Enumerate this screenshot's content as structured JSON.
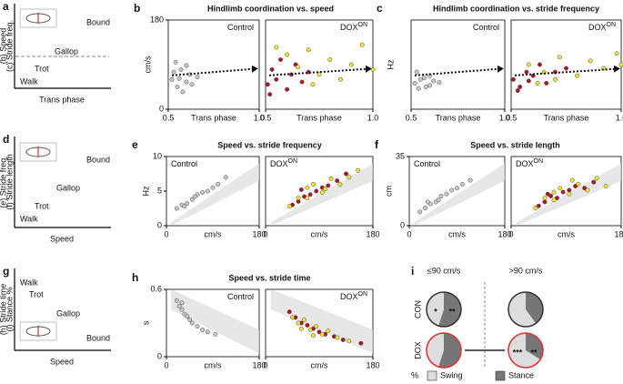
{
  "schematics": [
    {
      "letter": "a",
      "ylabels": [
        "(b) Speed",
        "(c) Stride freq."
      ],
      "xlabel": "Trans phase",
      "gaits": [
        "Bound",
        "Gallop",
        "Trot",
        "Walk"
      ]
    },
    {
      "letter": "d",
      "ylabels": [
        "(e) Stride freq.",
        "(f) Stride length"
      ],
      "xlabel": "Speed",
      "gaits": [
        "Bound",
        "Gallop",
        "Trot",
        "Walk"
      ]
    },
    {
      "letter": "g",
      "ylabels": [
        "(h) Stride time",
        "(i) Stance %"
      ],
      "xlabel": "Speed",
      "gaits": [
        "Walk",
        "Trot",
        "Gallop",
        "Bound"
      ]
    }
  ],
  "chart_data": [
    {
      "type": "scatter",
      "letter": "b",
      "title": "Hindlimb coordination vs. speed",
      "label": "Control",
      "ylabel": "cm/s",
      "xlabel": "Trans phase",
      "xlim": [
        0.5,
        1.0
      ],
      "ylim": [
        0,
        180
      ],
      "xticks": [
        0.5,
        {
          "value": 1,
          "label": "1.0"
        }
      ],
      "yticks": [
        0,
        180
      ],
      "series": [
        {
          "color": "#c8c8c8",
          "x": [
            0.52,
            0.55,
            0.57,
            0.6,
            0.62,
            0.54,
            0.58,
            0.63,
            0.66,
            0.53,
            0.6,
            0.56
          ],
          "values": [
            60,
            45,
            80,
            55,
            70,
            95,
            35,
            50,
            65,
            75,
            88,
            62
          ]
        }
      ]
    },
    {
      "type": "scatter",
      "label": "DOX",
      "label_sup": "ON",
      "xlabel": "Trans phase",
      "xlim": [
        0.5,
        1.0
      ],
      "ylim": [
        0,
        180
      ],
      "xticks": [
        0.5,
        {
          "value": 1,
          "label": "1.0"
        }
      ],
      "series": [
        {
          "color": "#b5122a",
          "x": [
            0.51,
            0.53,
            0.55,
            0.57,
            0.6,
            0.62,
            0.64,
            0.67,
            0.52,
            0.7
          ],
          "values": [
            50,
            80,
            60,
            100,
            40,
            70,
            90,
            55,
            30,
            75
          ]
        },
        {
          "color": "#f0e830",
          "x": [
            0.6,
            0.65,
            0.7,
            0.75,
            0.8,
            0.85,
            0.9,
            0.95,
            0.72,
            1.0,
            0.55
          ],
          "values": [
            110,
            85,
            120,
            70,
            100,
            60,
            90,
            130,
            50,
            80,
            125
          ]
        }
      ]
    },
    {
      "type": "scatter",
      "letter": "c",
      "title": "Hindlimb coordination vs. stride frequency",
      "label": "Control",
      "ylabel": "Hz",
      "xlabel": "Trans phase",
      "xlim": [
        0.5,
        1.0
      ],
      "ylim": [
        0,
        12
      ],
      "xticks": [
        0.5,
        {
          "value": 1,
          "label": "1.0"
        }
      ],
      "series": [
        {
          "color": "#c8c8c8",
          "x": [
            0.52,
            0.55,
            0.58,
            0.6,
            0.62,
            0.54,
            0.57,
            0.65,
            0.53,
            0.6
          ],
          "values": [
            3.5,
            4,
            3,
            4.5,
            3.8,
            2.8,
            4.2,
            3.6,
            5,
            3.2
          ]
        }
      ]
    },
    {
      "type": "scatter",
      "label": "DOX",
      "label_sup": "ON",
      "xlabel": "Trans phase",
      "xlim": [
        0.5,
        1.0
      ],
      "ylim": [
        0,
        12
      ],
      "xticks": [
        0.5,
        {
          "value": 1,
          "label": "1.0"
        }
      ],
      "series": [
        {
          "color": "#b5122a",
          "x": [
            0.51,
            0.54,
            0.57,
            0.6,
            0.63,
            0.66,
            0.7,
            0.53,
            0.75,
            0.58
          ],
          "values": [
            4,
            3,
            5,
            4.5,
            6,
            3.5,
            5,
            2.5,
            5.5,
            3.8
          ]
        },
        {
          "color": "#f0e830",
          "x": [
            0.58,
            0.65,
            0.72,
            0.8,
            0.86,
            0.92,
            0.98,
            0.7,
            1.0,
            0.62
          ],
          "values": [
            6,
            5,
            7,
            4.5,
            6.5,
            5.5,
            7.5,
            4,
            6,
            3.5
          ]
        }
      ]
    },
    {
      "type": "scatter",
      "letter": "e",
      "title": "Speed vs. stride frequency",
      "label": "Control",
      "ylabel": "Hz",
      "xlabel": "cm/s",
      "xlim": [
        0,
        180
      ],
      "ylim": [
        0,
        10
      ],
      "xticks": [
        0,
        180
      ],
      "yticks": [
        0,
        5,
        10
      ],
      "series": [
        {
          "color": "#c8c8c8",
          "x": [
            20,
            30,
            40,
            50,
            60,
            70,
            80,
            90,
            100,
            115,
            35,
            55
          ],
          "values": [
            2.5,
            3,
            3.2,
            3.8,
            4.5,
            4.8,
            5,
            5.5,
            6,
            7,
            2.8,
            4.2
          ]
        }
      ]
    },
    {
      "type": "scatter",
      "label": "DOX",
      "label_sup": "ON",
      "xlabel": "cm/s",
      "xlim": [
        0,
        180
      ],
      "ylim": [
        0,
        10
      ],
      "xticks": [
        0,
        180
      ],
      "series": [
        {
          "color": "#b5122a",
          "x": [
            45,
            55,
            65,
            75,
            85,
            95,
            105,
            120,
            135,
            60
          ],
          "values": [
            3,
            3.5,
            4.2,
            4.5,
            5,
            5.5,
            5.8,
            6.5,
            7.5,
            5.2
          ]
        },
        {
          "color": "#f0e830",
          "x": [
            40,
            55,
            70,
            80,
            95,
            110,
            125,
            140,
            155,
            70,
            100
          ],
          "values": [
            2.8,
            4,
            4,
            6,
            4.8,
            6.8,
            6,
            7,
            8,
            5.5,
            5.3
          ]
        }
      ]
    },
    {
      "type": "scatter",
      "letter": "f",
      "title": "Speed vs. stride length",
      "label": "Control",
      "ylabel": "cm",
      "xlabel": "cm/s",
      "xlim": [
        0,
        180
      ],
      "ylim": [
        0,
        35
      ],
      "xticks": [
        0,
        180
      ],
      "yticks": [
        0,
        35
      ],
      "series": [
        {
          "color": "#c8c8c8",
          "x": [
            20,
            30,
            40,
            50,
            60,
            70,
            80,
            90,
            100,
            115,
            35,
            55
          ],
          "values": [
            7,
            9,
            11,
            12,
            15,
            16,
            18,
            19,
            21,
            23,
            12,
            13
          ]
        }
      ]
    },
    {
      "type": "scatter",
      "label": "DOX",
      "label_sup": "ON",
      "xlabel": "cm/s",
      "xlim": [
        0,
        180
      ],
      "ylim": [
        0,
        35
      ],
      "xticks": [
        0,
        180
      ],
      "series": [
        {
          "color": "#b5122a",
          "x": [
            45,
            55,
            65,
            75,
            85,
            95,
            105,
            120,
            135,
            60
          ],
          "values": [
            10,
            12,
            15,
            14,
            17,
            18,
            20,
            19,
            22,
            16
          ]
        },
        {
          "color": "#f0e830",
          "x": [
            40,
            55,
            70,
            80,
            95,
            110,
            125,
            140,
            155,
            70,
            100
          ],
          "values": [
            9,
            14,
            13,
            19,
            16,
            21,
            18,
            24,
            20,
            17,
            23
          ]
        }
      ]
    },
    {
      "type": "scatter",
      "letter": "h",
      "title": "Speed vs. stride time",
      "label": "Control",
      "ylabel": "s",
      "xlabel": "cm/s",
      "xlim": [
        0,
        180
      ],
      "ylim": [
        0,
        0.6
      ],
      "xticks": [
        0,
        180
      ],
      "yticks": [
        0,
        0.6
      ],
      "series": [
        {
          "color": "#c8c8c8",
          "x": [
            20,
            25,
            30,
            35,
            40,
            50,
            60,
            70,
            80,
            95,
            45,
            30
          ],
          "values": [
            0.5,
            0.45,
            0.42,
            0.38,
            0.36,
            0.3,
            0.27,
            0.24,
            0.22,
            0.2,
            0.33,
            0.48
          ]
        }
      ]
    },
    {
      "type": "scatter",
      "label": "DOX",
      "label_sup": "ON",
      "xlabel": "cm/s",
      "xlim": [
        0,
        180
      ],
      "ylim": [
        0,
        0.6
      ],
      "xticks": [
        0,
        180
      ],
      "series": [
        {
          "color": "#b5122a",
          "x": [
            40,
            50,
            60,
            70,
            80,
            90,
            100,
            115,
            130,
            160
          ],
          "values": [
            0.4,
            0.35,
            0.3,
            0.28,
            0.25,
            0.22,
            0.2,
            0.18,
            0.15,
            0.12
          ]
        },
        {
          "color": "#f0e830",
          "x": [
            45,
            55,
            65,
            75,
            85,
            95,
            105,
            120,
            140,
            60,
            80
          ],
          "values": [
            0.35,
            0.3,
            0.33,
            0.24,
            0.27,
            0.2,
            0.23,
            0.17,
            0.14,
            0.25,
            0.19
          ]
        }
      ]
    },
    {
      "type": "pie",
      "letter": "i",
      "columns": [
        "≤90 cm/s",
        ">90 cm/s"
      ],
      "rows": [
        {
          "name": "CON",
          "outline": "#333333"
        },
        {
          "name": "DOX",
          "outline": "#e03030"
        }
      ],
      "pies": [
        {
          "values": [
            45,
            55
          ],
          "stars": [
            "*",
            "**"
          ]
        },
        {
          "values": [
            60,
            40
          ]
        },
        {
          "values": [
            45,
            55
          ]
        },
        {
          "values": [
            66,
            34
          ],
          "stars": [
            "***",
            "**"
          ]
        }
      ],
      "series": [
        {
          "name": "Swing",
          "color": "#dddddd"
        },
        {
          "name": "Stance",
          "color": "#777777"
        }
      ],
      "unit_label": "%"
    }
  ]
}
